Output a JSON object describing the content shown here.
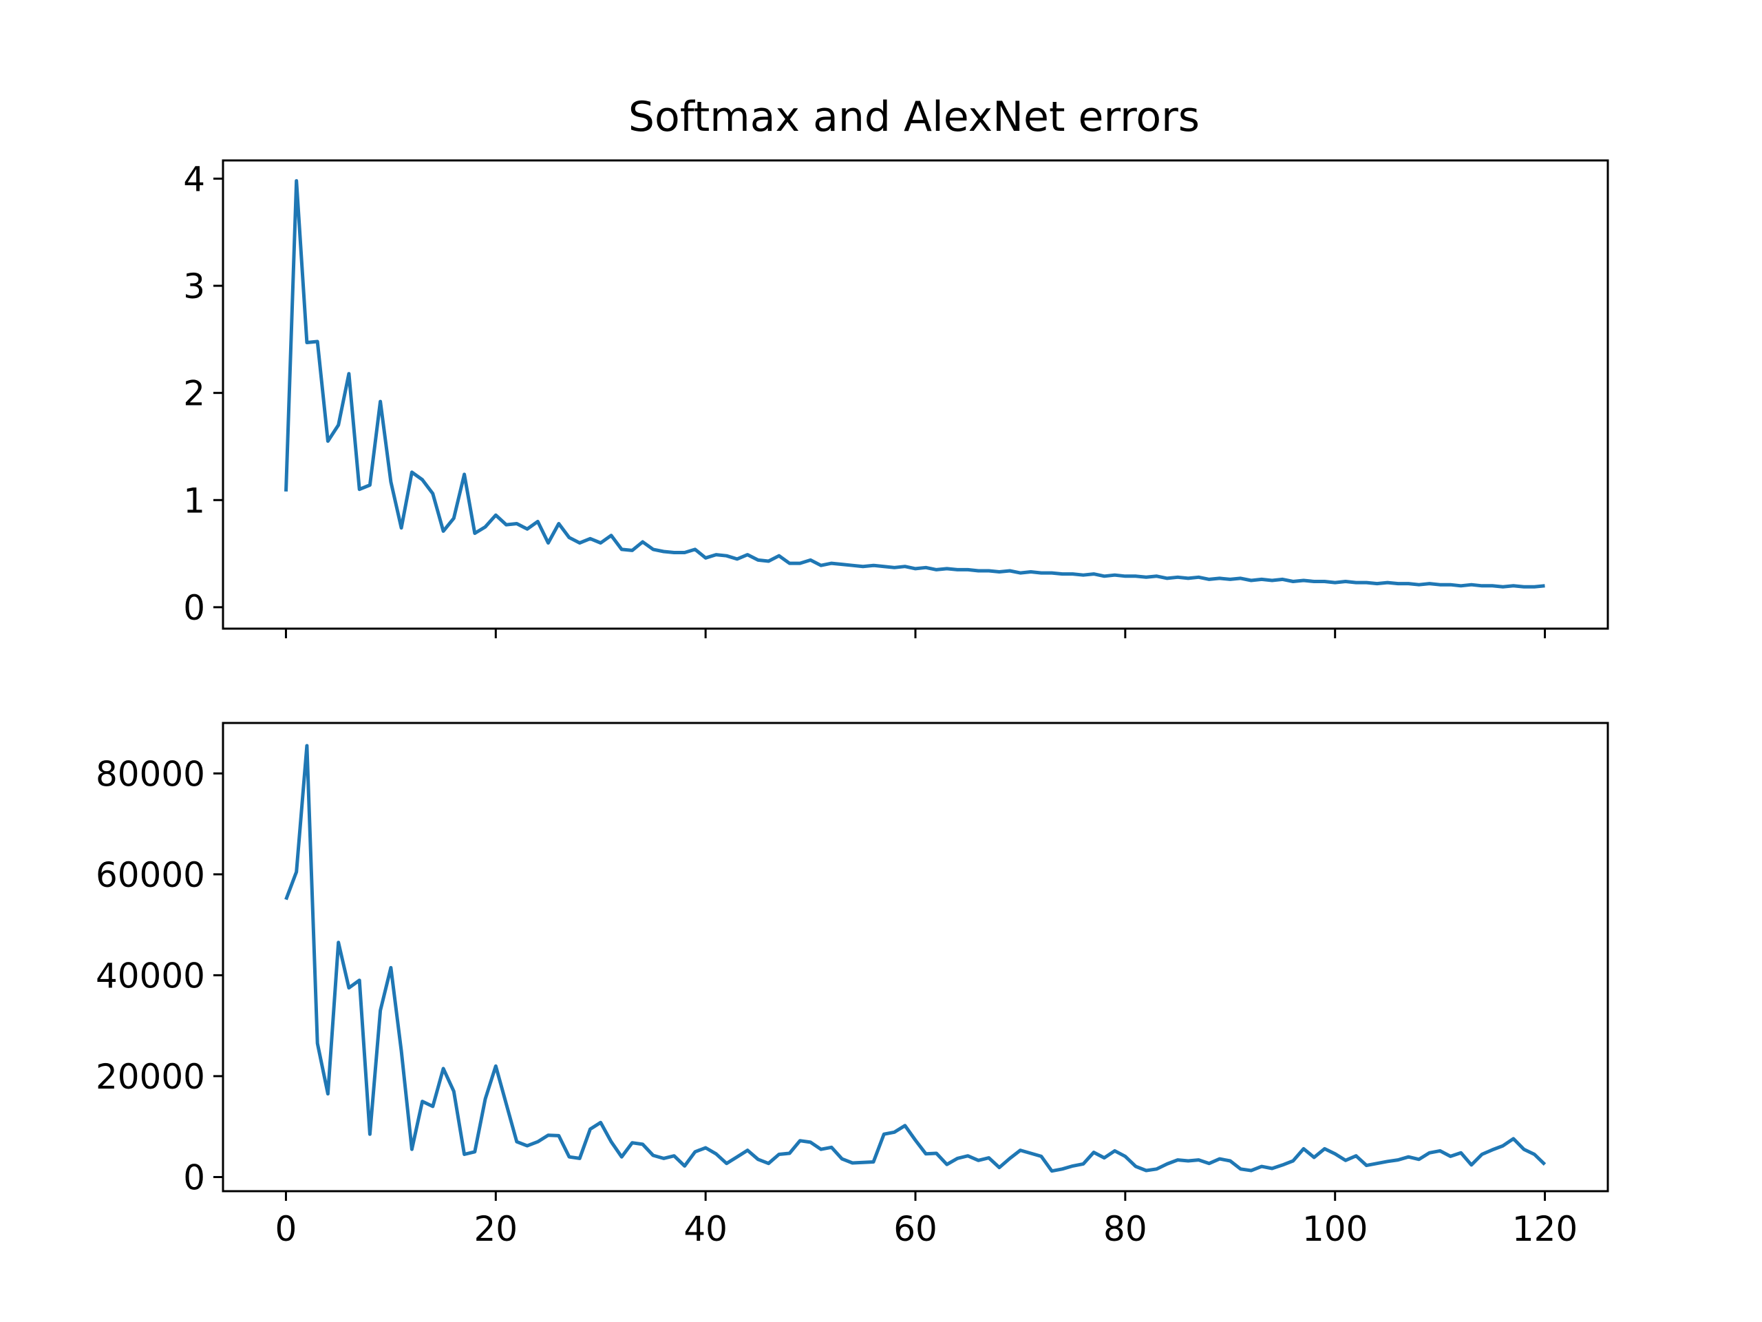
{
  "title": "Softmax and AlexNet errors",
  "colors": {
    "line": "#1f77b4",
    "axes": "#000000",
    "background": "#ffffff"
  },
  "chart_data": [
    {
      "type": "line",
      "title": "Softmax and AlexNet errors",
      "xlabel": "",
      "ylabel": "",
      "xlim": [
        -6,
        126
      ],
      "ylim": [
        -0.2,
        4.17
      ],
      "xticks": [
        0,
        20,
        40,
        60,
        80,
        100,
        120
      ],
      "xtick_labels_visible": false,
      "yticks": [
        0,
        1,
        2,
        3,
        4
      ],
      "ytick_labels": [
        "0",
        "1",
        "2",
        "3",
        "4"
      ],
      "grid": false,
      "legend": "none",
      "series": [
        {
          "x_start": 0,
          "x_step": 1,
          "values": [
            1.08,
            3.98,
            2.47,
            2.48,
            1.55,
            1.7,
            2.18,
            1.1,
            1.14,
            1.92,
            1.17,
            0.74,
            1.26,
            1.19,
            1.06,
            0.71,
            0.83,
            1.24,
            0.69,
            0.75,
            0.86,
            0.77,
            0.78,
            0.73,
            0.8,
            0.6,
            0.78,
            0.65,
            0.6,
            0.64,
            0.6,
            0.67,
            0.54,
            0.53,
            0.61,
            0.54,
            0.52,
            0.51,
            0.51,
            0.54,
            0.46,
            0.49,
            0.48,
            0.45,
            0.49,
            0.44,
            0.43,
            0.48,
            0.41,
            0.41,
            0.44,
            0.39,
            0.41,
            0.4,
            0.39,
            0.38,
            0.39,
            0.38,
            0.37,
            0.38,
            0.36,
            0.37,
            0.35,
            0.36,
            0.35,
            0.35,
            0.34,
            0.34,
            0.33,
            0.34,
            0.32,
            0.33,
            0.32,
            0.32,
            0.31,
            0.31,
            0.3,
            0.31,
            0.29,
            0.3,
            0.29,
            0.29,
            0.28,
            0.29,
            0.27,
            0.28,
            0.27,
            0.28,
            0.26,
            0.27,
            0.26,
            0.27,
            0.25,
            0.26,
            0.25,
            0.26,
            0.24,
            0.25,
            0.24,
            0.24,
            0.23,
            0.24,
            0.23,
            0.23,
            0.22,
            0.23,
            0.22,
            0.22,
            0.21,
            0.22,
            0.21,
            0.21,
            0.2,
            0.21,
            0.2,
            0.2,
            0.19,
            0.2,
            0.19,
            0.19,
            0.2
          ]
        }
      ]
    },
    {
      "type": "line",
      "xlabel": "",
      "ylabel": "",
      "xlim": [
        -6,
        126
      ],
      "ylim": [
        -2800,
        90000
      ],
      "xticks": [
        0,
        20,
        40,
        60,
        80,
        100,
        120
      ],
      "xtick_labels": [
        "0",
        "20",
        "40",
        "60",
        "80",
        "100",
        "120"
      ],
      "yticks": [
        0,
        20000,
        40000,
        60000,
        80000
      ],
      "ytick_labels": [
        "0",
        "20000",
        "40000",
        "60000",
        "80000"
      ],
      "grid": false,
      "legend": "none",
      "series": [
        {
          "x_start": 0,
          "x_step": 1,
          "values": [
            55000,
            60500,
            85500,
            26500,
            16500,
            46500,
            37500,
            39000,
            8500,
            33000,
            41500,
            25000,
            5500,
            15000,
            14000,
            21500,
            17000,
            4500,
            5000,
            15500,
            22000,
            14500,
            7000,
            6200,
            7000,
            8300,
            8200,
            4000,
            3700,
            9500,
            10800,
            7000,
            4000,
            6800,
            6500,
            4300,
            3700,
            4200,
            2200,
            5000,
            5800,
            4600,
            2700,
            4000,
            5300,
            3500,
            2700,
            4500,
            4700,
            7200,
            6900,
            5500,
            5900,
            3600,
            2800,
            2900,
            3000,
            8500,
            8900,
            10200,
            7300,
            4600,
            4700,
            2500,
            3700,
            4200,
            3300,
            3800,
            1900,
            3700,
            5300,
            4700,
            4100,
            1200,
            1600,
            2200,
            2600,
            4900,
            3800,
            5200,
            4100,
            2100,
            1300,
            1600,
            2600,
            3400,
            3200,
            3400,
            2700,
            3600,
            3200,
            1600,
            1300,
            2100,
            1700,
            2400,
            3200,
            5600,
            3900,
            5600,
            4600,
            3300,
            4200,
            2300,
            2700,
            3100,
            3400,
            4000,
            3500,
            4800,
            5200,
            4100,
            4800,
            2400,
            4500,
            5400,
            6200,
            7600,
            5500,
            4500,
            2500
          ]
        }
      ]
    }
  ]
}
